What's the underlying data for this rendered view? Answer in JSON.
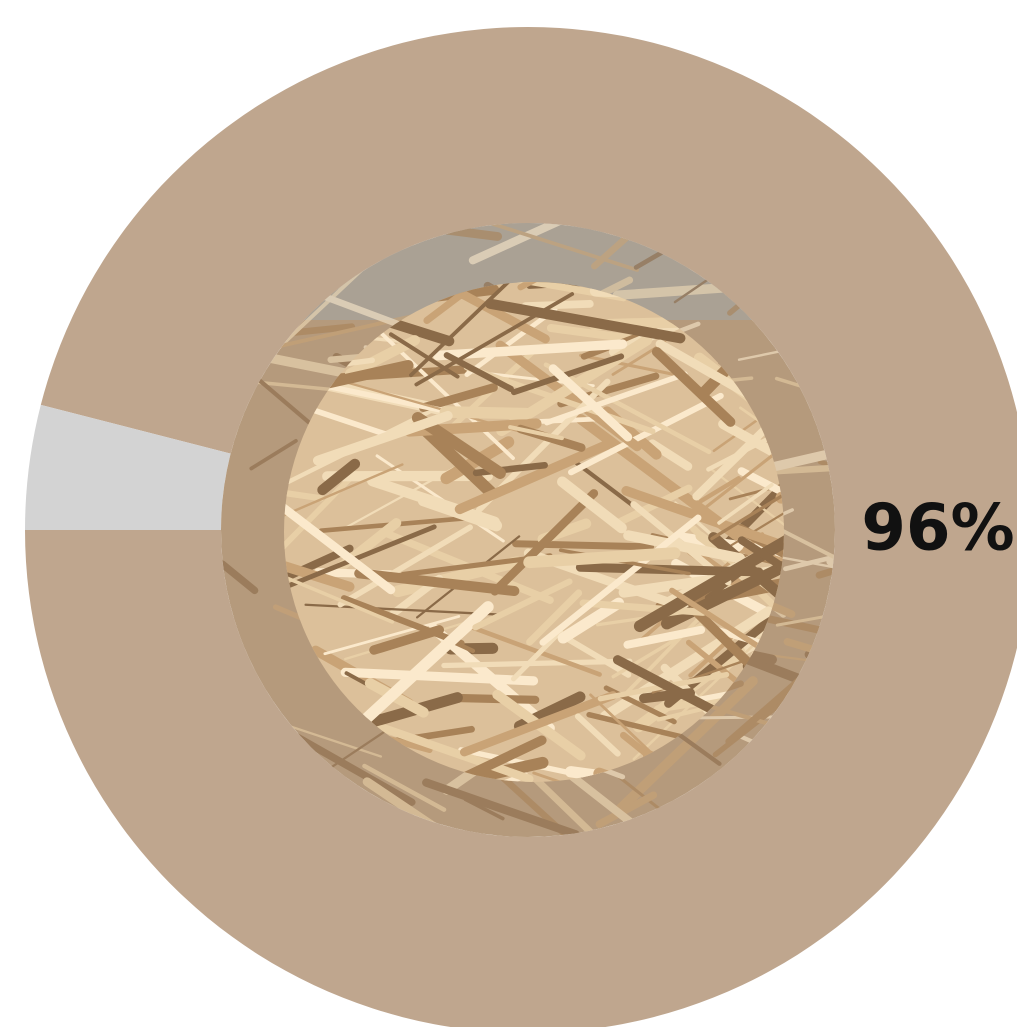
{
  "chart_data": {
    "type": "donut",
    "series": [
      {
        "values": [
          96,
          4
        ],
        "value_labels": [
          "96%",
          null
        ],
        "colors": [
          "#bfa68e",
          "#d3d3d3"
        ]
      }
    ]
  }
}
